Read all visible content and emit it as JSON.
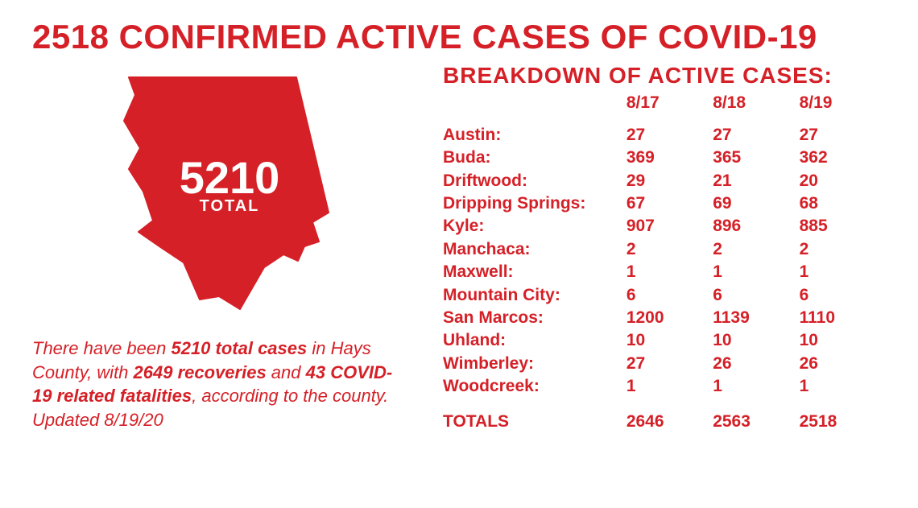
{
  "title": "2518 CONFIRMED ACTIVE CASES OF COVID-19",
  "map": {
    "total_number": "5210",
    "total_label": "TOTAL",
    "shape_color": "#d52027",
    "text_color": "#ffffff"
  },
  "summary": {
    "pre": "There have been ",
    "total_cases": "5210 total cases",
    "mid1": " in Hays County, with ",
    "recoveries": "2649 recoveries",
    "mid2": " and ",
    "fatalities": "43 COVID-19 related fatalities",
    "post": ", according to the county. Updated 8/19/20"
  },
  "breakdown": {
    "heading": "BREAKDOWN OF ACTIVE CASES:",
    "dates": [
      "8/17",
      "8/18",
      "8/19"
    ],
    "cities": [
      {
        "name": "Austin",
        "values": [
          "27",
          "27",
          "27"
        ]
      },
      {
        "name": "Buda",
        "values": [
          "369",
          "365",
          "362"
        ]
      },
      {
        "name": "Driftwood",
        "values": [
          "29",
          "21",
          "20"
        ]
      },
      {
        "name": "Dripping Springs",
        "values": [
          "67",
          "69",
          "68"
        ]
      },
      {
        "name": "Kyle",
        "values": [
          "907",
          "896",
          "885"
        ]
      },
      {
        "name": "Manchaca",
        "values": [
          "2",
          "2",
          "2"
        ]
      },
      {
        "name": "Maxwell",
        "values": [
          "1",
          "1",
          "1"
        ]
      },
      {
        "name": "Mountain City",
        "values": [
          "6",
          "6",
          "6"
        ]
      },
      {
        "name": "San Marcos",
        "values": [
          "1200",
          "1139",
          "1110"
        ]
      },
      {
        "name": "Uhland",
        "values": [
          "10",
          "10",
          "10"
        ]
      },
      {
        "name": "Wimberley",
        "values": [
          "27",
          "26",
          "26"
        ]
      },
      {
        "name": "Woodcreek",
        "values": [
          "1",
          "1",
          "1"
        ]
      }
    ],
    "totals_label": "TOTALS",
    "totals": [
      "2646",
      "2563",
      "2518"
    ]
  },
  "colors": {
    "primary": "#d52027",
    "background": "#ffffff"
  },
  "typography": {
    "title_fontsize": 42,
    "breakdown_heading_fontsize": 28,
    "table_fontsize": 21,
    "summary_fontsize": 22,
    "map_number_fontsize": 56
  }
}
